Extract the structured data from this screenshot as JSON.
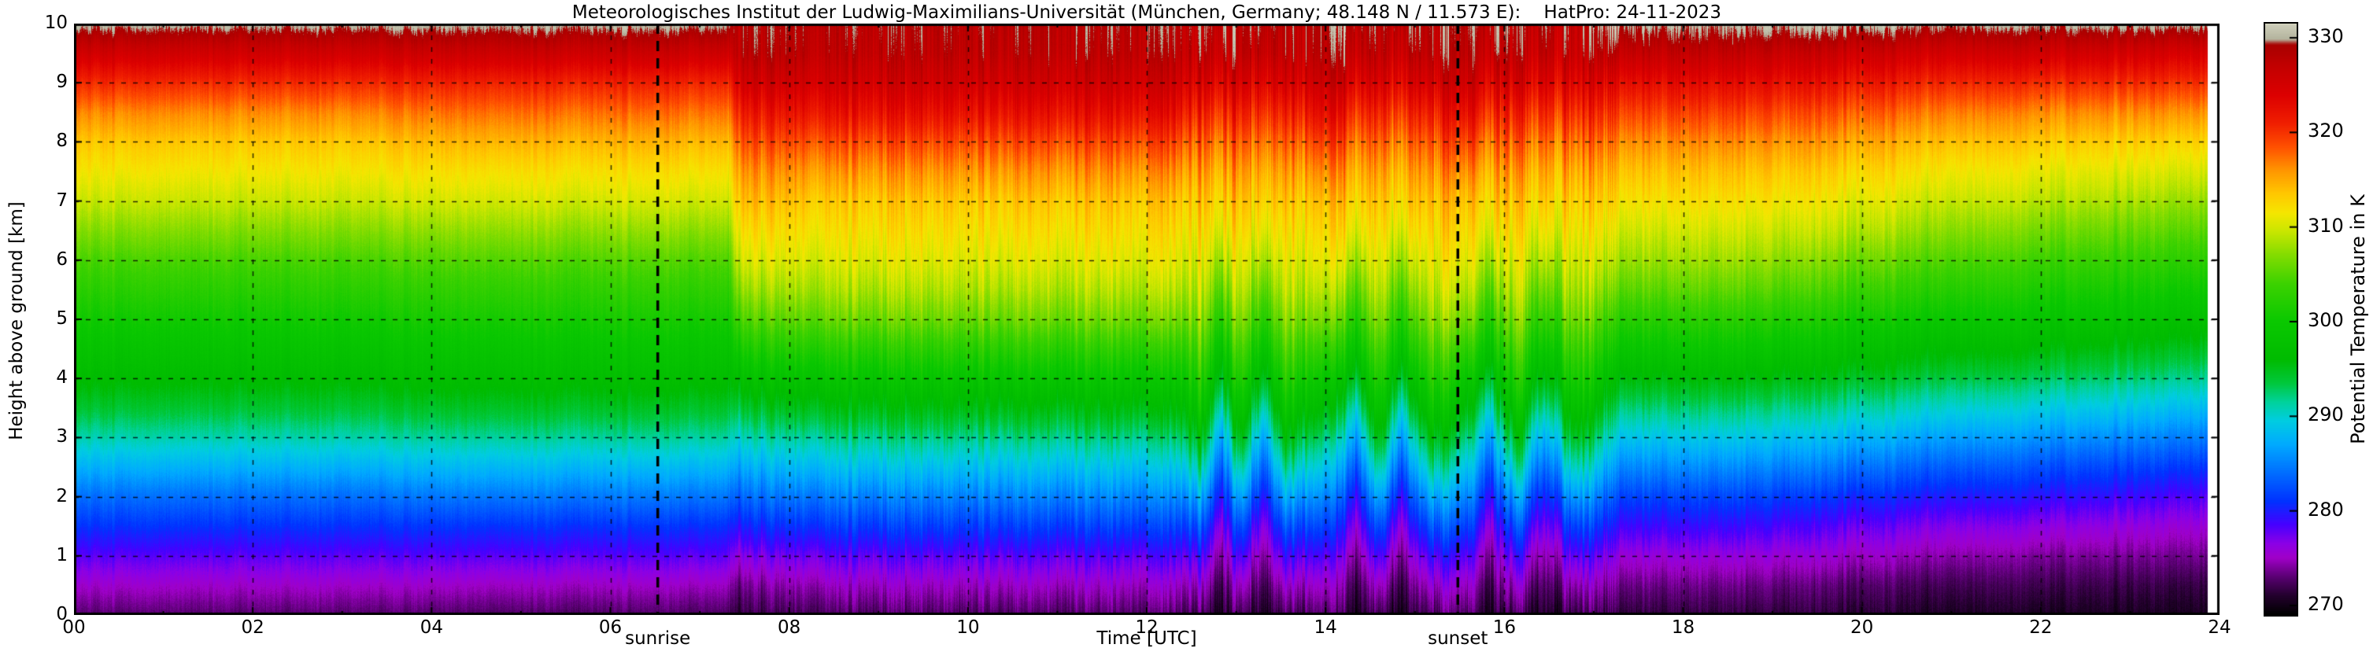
{
  "title": "Meteorologisches Institut der Ludwig-Maximilians-Universität (München, Germany; 48.148 N / 11.573 E):    HatPro: 24-11-2023",
  "axes": {
    "x_label": "Time [UTC]",
    "y_label": "Height above ground [km]",
    "x_ticks": [
      "00",
      "02",
      "04",
      "06",
      "08",
      "10",
      "12",
      "14",
      "16",
      "18",
      "20",
      "22",
      "24"
    ],
    "x_tick_values": [
      0,
      2,
      4,
      6,
      8,
      10,
      12,
      14,
      16,
      18,
      20,
      22,
      24
    ],
    "y_ticks": [
      "0",
      "1",
      "2",
      "3",
      "4",
      "5",
      "6",
      "7",
      "8",
      "9",
      "10"
    ],
    "y_tick_values": [
      0,
      1,
      2,
      3,
      4,
      5,
      6,
      7,
      8,
      9,
      10
    ],
    "x_range": [
      0,
      24
    ],
    "y_range": [
      0,
      10
    ]
  },
  "colorbar": {
    "label": "Potential Temperature in K",
    "ticks": [
      "330",
      "320",
      "310",
      "300",
      "290",
      "280",
      "270"
    ],
    "tick_values": [
      330,
      320,
      310,
      300,
      290,
      280,
      270
    ],
    "render_range": [
      269,
      331.5
    ]
  },
  "annotations": {
    "sunrise": {
      "label": "sunrise",
      "time": 6.53
    },
    "sunset": {
      "label": "sunset",
      "time": 15.48
    }
  },
  "chart_data": {
    "type": "heatmap",
    "x_unit": "hours UTC",
    "y_unit": "km above ground",
    "value_unit": "K (potential temperature)",
    "grid": true,
    "heights_km": [
      0,
      0.5,
      1,
      1.5,
      2,
      2.5,
      3,
      3.5,
      4,
      4.5,
      5,
      5.5,
      6,
      6.5,
      7,
      7.5,
      8,
      8.5,
      9,
      9.5,
      10
    ],
    "profiles": {
      "night": [
        272.8,
        275.2,
        278,
        281,
        284,
        287.5,
        291,
        294,
        296.5,
        298.5,
        300.5,
        302.5,
        304.5,
        307,
        309.5,
        311.5,
        313.5,
        316.5,
        320.5,
        325.5,
        330.5
      ],
      "night2": [
        272.5,
        275,
        278,
        281,
        284.5,
        288,
        291.5,
        294.5,
        297,
        299,
        301,
        303,
        305,
        307.5,
        310,
        312,
        314.5,
        317.5,
        321,
        326,
        330.5
      ],
      "morning": [
        271.5,
        273.5,
        276.5,
        280,
        283.5,
        287,
        290.5,
        294,
        297.5,
        301,
        304.5,
        307.5,
        310,
        312,
        314,
        316,
        318.5,
        321.5,
        325,
        328,
        328.5
      ],
      "midday": [
        272.5,
        275,
        278,
        281.5,
        285,
        288.5,
        292,
        295.5,
        299,
        302.5,
        306,
        308.5,
        310.5,
        312,
        313.5,
        316,
        319,
        322.5,
        325.5,
        327.5,
        328.2
      ],
      "warmcol": [
        272.5,
        275.5,
        279,
        283,
        287.5,
        292,
        296,
        299.5,
        302.5,
        305,
        307.5,
        309.5,
        311,
        312.5,
        314,
        316,
        318.5,
        321.5,
        325,
        327.5,
        328.2
      ],
      "coldplume": [
        270.3,
        271.8,
        273.8,
        276.3,
        279.3,
        282.8,
        286.5,
        290.5,
        294.5,
        298.5,
        302,
        305,
        308,
        310.5,
        312.5,
        314.5,
        317,
        320,
        323.5,
        326.5,
        328.2
      ],
      "evening18": [
        271.5,
        273.5,
        276,
        279,
        282,
        285.5,
        289,
        292.5,
        296,
        299.5,
        302.5,
        305.5,
        308,
        310,
        312,
        314,
        316.5,
        319.5,
        323,
        327,
        330.5
      ],
      "evening20": [
        271,
        272.5,
        275,
        277.5,
        280.5,
        284,
        287.5,
        291,
        294.5,
        297.5,
        300.5,
        303.5,
        306,
        308.5,
        310.5,
        312.5,
        315,
        318,
        321.5,
        325.5,
        330.5
      ],
      "night22": [
        270.5,
        272,
        274,
        276.5,
        279.5,
        282.5,
        286,
        289.5,
        293,
        296,
        299,
        301.5,
        304,
        306.5,
        309,
        311,
        313.5,
        316.5,
        320.5,
        325.5,
        330.5
      ],
      "night24": [
        270.3,
        271.5,
        273.5,
        275.5,
        278,
        281,
        284.5,
        288,
        291.5,
        294.5,
        297.5,
        300,
        302.5,
        305,
        307.5,
        310,
        312.5,
        316,
        320,
        324.5,
        330.5
      ]
    },
    "timeline": [
      [
        0,
        "night"
      ],
      [
        3,
        "night"
      ],
      [
        4.5,
        "night2"
      ],
      [
        7.32,
        "night2"
      ],
      [
        7.42,
        "morning"
      ],
      [
        8.5,
        "midday"
      ],
      [
        12.3,
        "midday"
      ],
      [
        12.6,
        "warmcol"
      ],
      [
        12.85,
        "coldplume"
      ],
      [
        13.05,
        "warmcol"
      ],
      [
        13.3,
        "coldplume"
      ],
      [
        13.55,
        "warmcol"
      ],
      [
        14.0,
        "midday"
      ],
      [
        14.35,
        "coldplume"
      ],
      [
        14.6,
        "warmcol"
      ],
      [
        14.85,
        "coldplume"
      ],
      [
        15.2,
        "warmcol"
      ],
      [
        15.6,
        "midday"
      ],
      [
        15.85,
        "coldplume"
      ],
      [
        16.15,
        "warmcol"
      ],
      [
        16.45,
        "coldplume"
      ],
      [
        16.8,
        "warmcol"
      ],
      [
        17.25,
        "evening18"
      ],
      [
        18.5,
        "evening18"
      ],
      [
        20,
        "evening20"
      ],
      [
        22,
        "night22"
      ],
      [
        24,
        "night24"
      ]
    ],
    "missing_intervals": [
      [
        23.87,
        23.97
      ]
    ],
    "texture": {
      "column_noise_K": [
        [
          0,
          7.32,
          0.7
        ],
        [
          7.32,
          12.3,
          1.7
        ],
        [
          12.3,
          17.3,
          2.3
        ],
        [
          17.3,
          21,
          1.2
        ],
        [
          21,
          24,
          0.9
        ]
      ],
      "cell_noise_K": 0.7
    },
    "colormap": [
      [
        269,
        "#000000"
      ],
      [
        271,
        "#23002d"
      ],
      [
        273,
        "#5a0073"
      ],
      [
        275,
        "#a000c8"
      ],
      [
        276.5,
        "#8c00e6"
      ],
      [
        278.5,
        "#4600ff"
      ],
      [
        281,
        "#0032ff"
      ],
      [
        284,
        "#006eff"
      ],
      [
        287,
        "#00aaff"
      ],
      [
        289.5,
        "#00cde1"
      ],
      [
        291.5,
        "#00d29b"
      ],
      [
        293.5,
        "#00c83c"
      ],
      [
        296,
        "#00bb00"
      ],
      [
        300,
        "#0ac800"
      ],
      [
        304,
        "#3cd200"
      ],
      [
        307,
        "#82dc00"
      ],
      [
        309.5,
        "#c8e600"
      ],
      [
        311.5,
        "#f5e600"
      ],
      [
        313.5,
        "#ffc800"
      ],
      [
        316,
        "#ff9600"
      ],
      [
        318.5,
        "#ff5000"
      ],
      [
        321,
        "#f01e00"
      ],
      [
        324,
        "#dc0000"
      ],
      [
        327,
        "#c30000"
      ],
      [
        329.3,
        "#a80000"
      ],
      [
        329.9,
        "#b4b49e"
      ],
      [
        332,
        "#d8d8c4"
      ]
    ]
  }
}
